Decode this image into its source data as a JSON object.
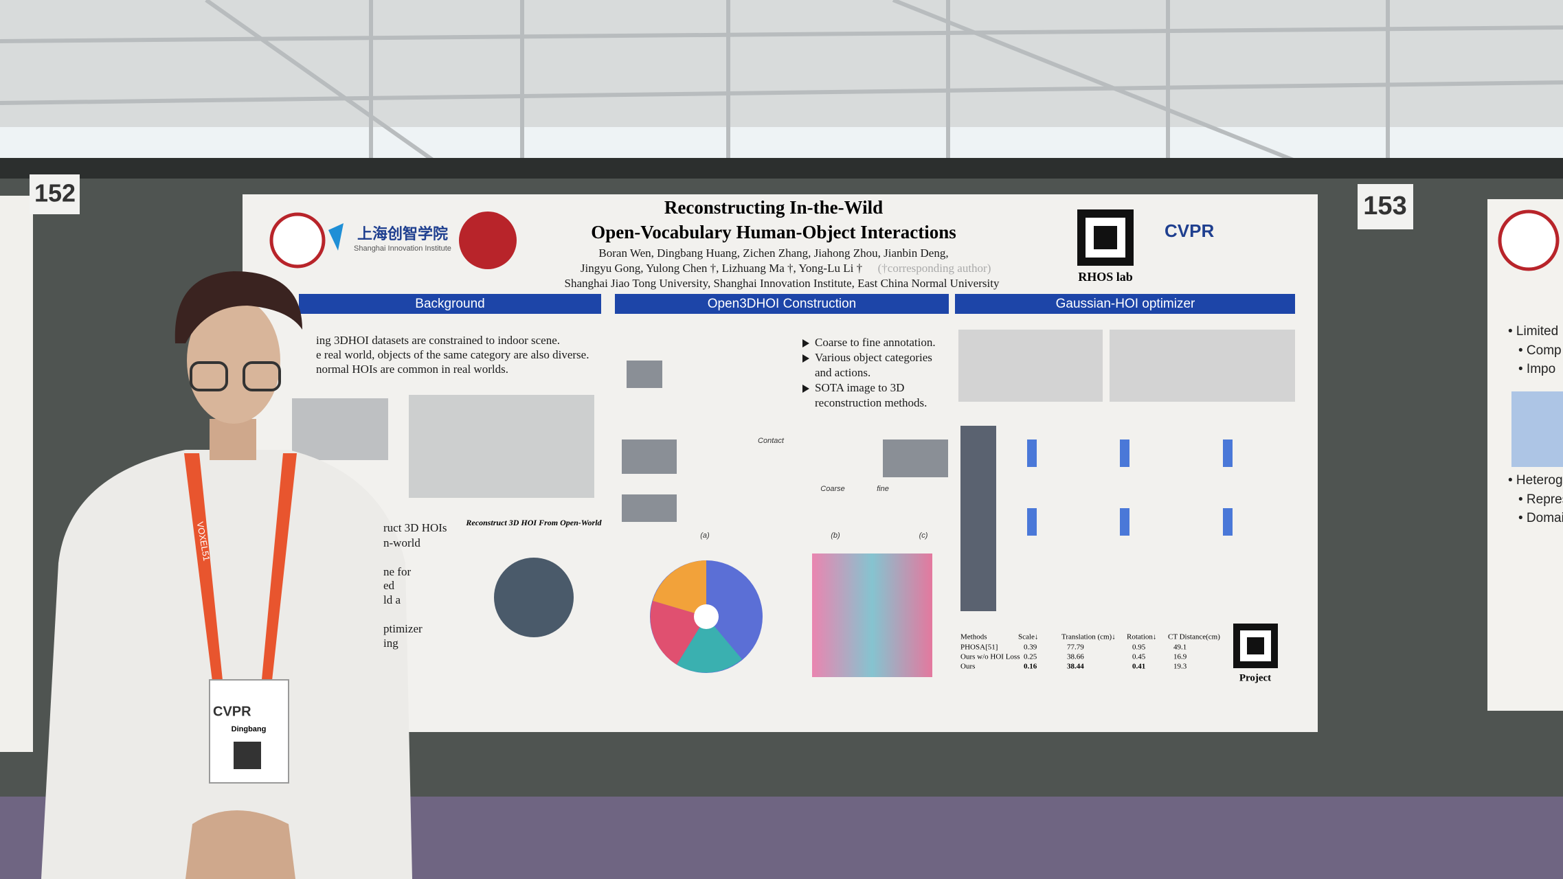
{
  "signs": {
    "left": "152",
    "right": "153"
  },
  "poster": {
    "title": [
      "Reconstructing In-the-Wild",
      "Open-Vocabulary Human-Object Interactions"
    ],
    "authors": [
      "Boran Wen, Dingbang Huang, Zichen Zhang, Jiahong Zhou, Jianbin Deng,",
      "Jingyu Gong, Yulong Chen †, Lizhuang Ma †, Yong-Lu Li †"
    ],
    "note": "(†corresponding author)",
    "affiliations": "Shanghai Jiao Tong University, Shanghai Innovation Institute, East China Normal University",
    "logo_cn": "上海创智学院",
    "logo_en": "Shanghai Innovation Institute",
    "lab": "RHOS lab",
    "conf": "CVPR",
    "sections": [
      "Background",
      "Open3DHOI Construction",
      "Gaussian-HOI optimizer"
    ],
    "background_lines": [
      "ing 3DHOI datasets are constrained to indoor scene.",
      "e real world, objects of the same category are also diverse.",
      "normal HOIs are common in real worlds."
    ],
    "left_fragments": [
      "ruct 3D HOIs",
      "n-world",
      "ne for",
      "ed",
      "ld a",
      "ptimizer",
      "ing"
    ],
    "construction_bullets": [
      "Coarse to fine annotation.",
      "Various object categories",
      "and actions.",
      "SOTA image to 3D",
      "reconstruction methods."
    ],
    "figure_caption": "Reconstruct 3D HOI From Open-World",
    "figure_labels": [
      "Contact",
      "Coarse",
      "fine",
      "(a)",
      "(b)",
      "(c)"
    ],
    "table": {
      "header": [
        "Methods",
        "Scale↓",
        "Translation (cm)↓",
        "Rotation↓",
        "CT Distance(cm)"
      ],
      "rows": [
        [
          "PHOSA[51]",
          "0.39",
          "77.79",
          "0.95",
          "49.1"
        ],
        [
          "Ours w/o HOI Loss",
          "0.25",
          "38.66",
          "0.45",
          "16.9"
        ],
        [
          "Ours",
          "0.16",
          "38.44",
          "0.41",
          "19.3"
        ]
      ]
    },
    "project": "Project"
  },
  "neighbor": {
    "lines": [
      "• Limited",
      "• Comp",
      "• Impo",
      "• Heterog",
      "• Repres",
      "• Domai"
    ]
  },
  "badge": {
    "conf": "CVPR",
    "name": "Dingbang",
    "lanyard": "VOXEL51"
  }
}
